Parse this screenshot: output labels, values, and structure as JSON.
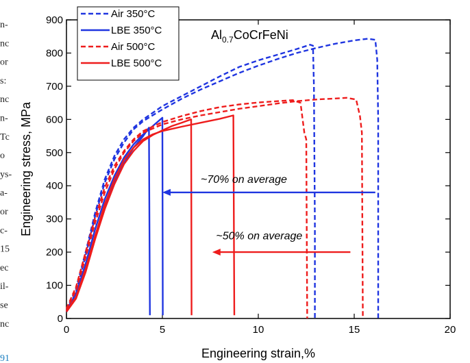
{
  "margin_fragments": [
    "n-",
    "nc",
    "or",
    "s:",
    "nc",
    "n-",
    "Tc",
    "o",
    "ys-",
    "a-",
    "or",
    "c-",
    "15",
    "ec",
    "il-",
    "se",
    "nc"
  ],
  "margin_link": "91",
  "alloy_label": {
    "main": "Al",
    "sub": "0.7",
    "rest": "CoCrFeNi"
  },
  "annotations": {
    "lbe_350": "~70% on average",
    "lbe_500": "~50% on average"
  },
  "colors": {
    "blue": "#1f35e0",
    "red": "#ee1c1c",
    "axis": "#000000"
  },
  "chart_data": {
    "type": "line",
    "xlabel": "Engineering strain,%",
    "ylabel": "Engineering stress, MPa",
    "xlim": [
      0,
      20
    ],
    "ylim": [
      0,
      900
    ],
    "xticks": [
      0,
      5,
      10,
      15,
      20
    ],
    "yticks": [
      0,
      100,
      200,
      300,
      400,
      500,
      600,
      700,
      800,
      900
    ],
    "grid": false,
    "legend_position": "top-left",
    "series": [
      {
        "name": "Air 350°C",
        "color": "#1f35e0",
        "dash": "dashed",
        "curves": [
          [
            [
              0,
              20
            ],
            [
              0.5,
              80
            ],
            [
              1,
              190
            ],
            [
              1.5,
              310
            ],
            [
              2,
              410
            ],
            [
              2.5,
              480
            ],
            [
              3,
              530
            ],
            [
              3.5,
              570
            ],
            [
              4,
              595
            ],
            [
              5,
              630
            ],
            [
              6,
              662
            ],
            [
              7,
              690
            ],
            [
              8,
              715
            ],
            [
              9,
              740
            ],
            [
              10,
              762
            ],
            [
              11,
              782
            ],
            [
              12,
              800
            ],
            [
              13,
              815
            ],
            [
              14,
              828
            ],
            [
              15,
              838
            ],
            [
              15.7,
              843
            ],
            [
              16.1,
              840
            ],
            [
              16.2,
              780
            ],
            [
              16.25,
              600
            ],
            [
              16.25,
              0
            ]
          ],
          [
            [
              0,
              25
            ],
            [
              0.5,
              90
            ],
            [
              1,
              200
            ],
            [
              1.5,
              320
            ],
            [
              2,
              420
            ],
            [
              2.5,
              490
            ],
            [
              3,
              540
            ],
            [
              3.5,
              575
            ],
            [
              4,
              600
            ],
            [
              5,
              640
            ],
            [
              6,
              670
            ],
            [
              7,
              700
            ],
            [
              8,
              730
            ],
            [
              9,
              758
            ],
            [
              10,
              778
            ],
            [
              11,
              795
            ],
            [
              12,
              812
            ],
            [
              12.7,
              825
            ],
            [
              12.85,
              822
            ],
            [
              12.9,
              700
            ],
            [
              12.95,
              280
            ],
            [
              12.95,
              0
            ]
          ]
        ]
      },
      {
        "name": "LBE 350°C",
        "color": "#1f35e0",
        "dash": "solid",
        "curves": [
          [
            [
              0,
              20
            ],
            [
              0.5,
              65
            ],
            [
              1,
              150
            ],
            [
              1.5,
              250
            ],
            [
              2,
              340
            ],
            [
              2.5,
              410
            ],
            [
              3,
              468
            ],
            [
              3.5,
              515
            ],
            [
              4,
              550
            ],
            [
              4.3,
              575
            ],
            [
              4.35,
              10
            ]
          ],
          [
            [
              0,
              25
            ],
            [
              0.5,
              75
            ],
            [
              1,
              165
            ],
            [
              1.5,
              270
            ],
            [
              2,
              360
            ],
            [
              2.5,
              430
            ],
            [
              3,
              485
            ],
            [
              3.5,
              525
            ],
            [
              4,
              555
            ],
            [
              4.5,
              580
            ],
            [
              4.9,
              600
            ],
            [
              5,
              605
            ],
            [
              5.02,
              10
            ]
          ]
        ]
      },
      {
        "name": "Air 500°C",
        "color": "#ee1c1c",
        "dash": "dashed",
        "curves": [
          [
            [
              0,
              25
            ],
            [
              0.5,
              85
            ],
            [
              1,
              185
            ],
            [
              1.5,
              290
            ],
            [
              2,
              380
            ],
            [
              2.5,
              450
            ],
            [
              3,
              500
            ],
            [
              3.5,
              535
            ],
            [
              4,
              560
            ],
            [
              5,
              585
            ],
            [
              6,
              600
            ],
            [
              7,
              612
            ],
            [
              8,
              622
            ],
            [
              9,
              632
            ],
            [
              10,
              640
            ],
            [
              11,
              648
            ],
            [
              12,
              655
            ],
            [
              13,
              660
            ],
            [
              14,
              663
            ],
            [
              14.6,
              665
            ],
            [
              15.1,
              660
            ],
            [
              15.3,
              610
            ],
            [
              15.4,
              560
            ],
            [
              15.45,
              0
            ]
          ],
          [
            [
              0,
              30
            ],
            [
              0.5,
              95
            ],
            [
              1,
              200
            ],
            [
              1.5,
              305
            ],
            [
              2,
              395
            ],
            [
              2.5,
              460
            ],
            [
              3,
              505
            ],
            [
              3.5,
              540
            ],
            [
              4,
              565
            ],
            [
              5,
              592
            ],
            [
              6,
              610
            ],
            [
              7,
              625
            ],
            [
              8,
              637
            ],
            [
              9,
              645
            ],
            [
              10,
              651
            ],
            [
              11,
              655
            ],
            [
              11.8,
              658
            ],
            [
              12.2,
              650
            ],
            [
              12.4,
              560
            ],
            [
              12.5,
              540
            ],
            [
              12.55,
              0
            ]
          ]
        ]
      },
      {
        "name": "LBE 500°C",
        "color": "#ee1c1c",
        "dash": "solid",
        "curves": [
          [
            [
              0,
              20
            ],
            [
              0.5,
              60
            ],
            [
              1,
              140
            ],
            [
              1.5,
              240
            ],
            [
              2,
              330
            ],
            [
              2.5,
              405
            ],
            [
              3,
              465
            ],
            [
              3.5,
              505
            ],
            [
              4,
              535
            ],
            [
              4.5,
              553
            ],
            [
              5,
              567
            ],
            [
              5.5,
              580
            ],
            [
              6,
              590
            ],
            [
              6.5,
              600
            ],
            [
              6.52,
              10
            ]
          ],
          [
            [
              0,
              22
            ],
            [
              0.5,
              65
            ],
            [
              1,
              150
            ],
            [
              1.5,
              250
            ],
            [
              2,
              345
            ],
            [
              2.5,
              420
            ],
            [
              3,
              478
            ],
            [
              3.5,
              515
            ],
            [
              4,
              540
            ],
            [
              4.5,
              555
            ],
            [
              5,
              565
            ],
            [
              6,
              578
            ],
            [
              7,
              590
            ],
            [
              8,
              602
            ],
            [
              8.7,
              612
            ],
            [
              8.75,
              10
            ]
          ]
        ]
      }
    ]
  }
}
